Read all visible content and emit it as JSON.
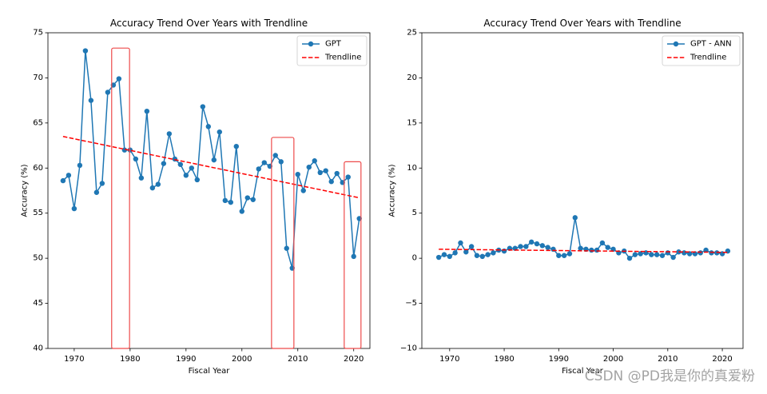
{
  "watermark": "CSDN @PD我是你的真爱粉",
  "chart_data": [
    {
      "type": "line",
      "title": "Accuracy Trend Over Years with Trendline",
      "xlabel": "Fiscal Year",
      "ylabel": "Accuracy (%)",
      "xlim": [
        1965.3,
        2022.9
      ],
      "ylim": [
        40,
        75
      ],
      "xticks": [
        1970,
        1980,
        1990,
        2000,
        2010,
        2020
      ],
      "xtick_labels": [
        "1970",
        "1980",
        "1990",
        "2000",
        "2010",
        "2020"
      ],
      "yticks": [
        40,
        45,
        50,
        55,
        60,
        65,
        70,
        75
      ],
      "ytick_labels": [
        "40",
        "45",
        "50",
        "55",
        "60",
        "65",
        "70",
        "75"
      ],
      "grid": false,
      "x": [
        1968,
        1969,
        1970,
        1971,
        1972,
        1973,
        1974,
        1975,
        1976,
        1977,
        1978,
        1979,
        1980,
        1981,
        1982,
        1983,
        1984,
        1985,
        1986,
        1987,
        1988,
        1989,
        1990,
        1991,
        1992,
        1993,
        1994,
        1995,
        1996,
        1997,
        1998,
        1999,
        2000,
        2001,
        2002,
        2003,
        2004,
        2005,
        2006,
        2007,
        2008,
        2009,
        2010,
        2011,
        2012,
        2013,
        2014,
        2015,
        2016,
        2017,
        2018,
        2019,
        2020,
        2021
      ],
      "series": [
        {
          "name": "GPT",
          "color": "#1f77b4",
          "values": [
            58.6,
            59.2,
            55.5,
            60.3,
            73.0,
            67.5,
            57.3,
            58.3,
            68.4,
            69.2,
            69.9,
            62.0,
            62.0,
            61.0,
            58.9,
            66.3,
            57.8,
            58.2,
            60.5,
            63.8,
            61.0,
            60.4,
            59.2,
            60.0,
            58.7,
            66.8,
            64.6,
            60.9,
            64.0,
            56.4,
            56.2,
            62.4,
            55.2,
            56.7,
            56.5,
            59.9,
            60.6,
            60.2,
            61.4,
            60.7,
            51.1,
            48.9,
            59.3,
            57.5,
            60.1,
            60.8,
            59.5,
            59.7,
            58.5,
            59.4,
            58.4,
            59.0,
            50.2,
            54.4
          ]
        }
      ],
      "trendline": {
        "name": "Trendline",
        "color": "#ff0000",
        "x": [
          1968,
          2021
        ],
        "values": [
          63.5,
          56.7
        ]
      },
      "highlight_color": "#ee4b4b",
      "highlights": [
        {
          "x": [
            1976.7,
            1979.9
          ],
          "y": [
            40,
            73.3
          ]
        },
        {
          "x": [
            2005.3,
            2009.3
          ],
          "y": [
            40,
            63.4
          ]
        },
        {
          "x": [
            2018.3,
            2021.3
          ],
          "y": [
            40,
            60.7
          ]
        }
      ]
    },
    {
      "type": "line",
      "title": "Accuracy Trend Over Years with Trendline",
      "xlabel": "Fiscal Year",
      "ylabel": "Accuracy (%)",
      "xlim": [
        1964.9,
        2023.8
      ],
      "ylim": [
        -10,
        25
      ],
      "xticks": [
        1970,
        1980,
        1990,
        2000,
        2010,
        2020
      ],
      "xtick_labels": [
        "1970",
        "1980",
        "1990",
        "2000",
        "2010",
        "2020"
      ],
      "yticks": [
        -10,
        -5,
        0,
        5,
        10,
        15,
        20,
        25
      ],
      "ytick_labels": [
        "−10",
        "−5",
        "0",
        "5",
        "10",
        "15",
        "20",
        "25"
      ],
      "grid": false,
      "x": [
        1968,
        1969,
        1970,
        1971,
        1972,
        1973,
        1974,
        1975,
        1976,
        1977,
        1978,
        1979,
        1980,
        1981,
        1982,
        1983,
        1984,
        1985,
        1986,
        1987,
        1988,
        1989,
        1990,
        1991,
        1992,
        1993,
        1994,
        1995,
        1996,
        1997,
        1998,
        1999,
        2000,
        2001,
        2002,
        2003,
        2004,
        2005,
        2006,
        2007,
        2008,
        2009,
        2010,
        2011,
        2012,
        2013,
        2014,
        2015,
        2016,
        2017,
        2018,
        2019,
        2020,
        2021
      ],
      "series": [
        {
          "name": "GPT - ANN",
          "color": "#1f77b4",
          "values": [
            0.1,
            0.4,
            0.2,
            0.6,
            1.7,
            0.7,
            1.3,
            0.3,
            0.2,
            0.4,
            0.6,
            0.9,
            0.8,
            1.1,
            1.1,
            1.3,
            1.3,
            1.8,
            1.6,
            1.4,
            1.2,
            1.0,
            0.3,
            0.3,
            0.5,
            4.5,
            1.1,
            1.0,
            0.9,
            0.9,
            1.7,
            1.2,
            1.0,
            0.6,
            0.8,
            0.0,
            0.4,
            0.5,
            0.6,
            0.4,
            0.4,
            0.3,
            0.6,
            0.1,
            0.7,
            0.6,
            0.5,
            0.5,
            0.6,
            0.9,
            0.6,
            0.6,
            0.5,
            0.8
          ]
        }
      ],
      "trendline": {
        "name": "Trendline",
        "color": "#ff0000",
        "x": [
          1968,
          2021
        ],
        "values": [
          1.0,
          0.65
        ]
      }
    }
  ]
}
